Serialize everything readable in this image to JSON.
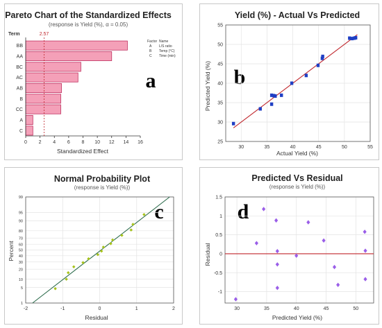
{
  "chart_data": [
    {
      "type": "bar",
      "title": "Pareto Chart of the Standardized Effects",
      "subtitle": "(response is Yield (%), α = 0.05)",
      "panel_letter": "a",
      "orientation": "horizontal",
      "ylabel": "Term",
      "xlabel": "Standardized Effect",
      "categories": [
        "BB",
        "AA",
        "BC",
        "AC",
        "AB",
        "B",
        "CC",
        "A",
        "C"
      ],
      "values": [
        14.2,
        12.0,
        7.7,
        7.3,
        5.0,
        4.9,
        4.9,
        1.0,
        1.0
      ],
      "xlim": [
        0,
        16
      ],
      "xticks": [
        0,
        2,
        4,
        6,
        8,
        10,
        12,
        14,
        16
      ],
      "reference_line": {
        "value": 2.57,
        "label": "2.57"
      },
      "bar_color": "#f4a0b8",
      "legend": {
        "headers": [
          "Factor",
          "Name"
        ],
        "rows": [
          [
            "A",
            "L/S ratio"
          ],
          [
            "B",
            "Temp (°C)"
          ],
          [
            "C",
            "Time (min)"
          ]
        ]
      }
    },
    {
      "type": "scatter",
      "title": "Yield (%) - Actual Vs Predicted",
      "panel_letter": "b",
      "xlabel": "Actual Yield (%)",
      "ylabel": "Predicted Yield (%)",
      "xlim": [
        27,
        55
      ],
      "ylim": [
        25,
        55
      ],
      "xticks": [
        30,
        35,
        40,
        45,
        50,
        55
      ],
      "yticks": [
        25,
        30,
        35,
        40,
        45,
        50,
        55
      ],
      "grid": true,
      "point_color": "#1f3fc4",
      "fit_line": {
        "from": [
          28.5,
          28.5
        ],
        "to": [
          52.5,
          52.5
        ],
        "color": "#c0262c"
      },
      "points": [
        {
          "x": 28.5,
          "y": 29.6
        },
        {
          "x": 33.7,
          "y": 33.4
        },
        {
          "x": 35.9,
          "y": 34.6
        },
        {
          "x": 35.9,
          "y": 36.9
        },
        {
          "x": 36.3,
          "y": 36.8
        },
        {
          "x": 36.6,
          "y": 36.7
        },
        {
          "x": 37.8,
          "y": 36.9
        },
        {
          "x": 39.8,
          "y": 40.0
        },
        {
          "x": 42.6,
          "y": 42.0
        },
        {
          "x": 44.9,
          "y": 44.6
        },
        {
          "x": 45.7,
          "y": 46.4
        },
        {
          "x": 45.8,
          "y": 46.9
        },
        {
          "x": 51.0,
          "y": 51.6
        },
        {
          "x": 51.5,
          "y": 51.5
        },
        {
          "x": 51.9,
          "y": 51.6
        },
        {
          "x": 52.2,
          "y": 51.7
        }
      ]
    },
    {
      "type": "scatter",
      "title": "Normal Probability Plot",
      "subtitle": "(response is Yield (%))",
      "panel_letter": "c",
      "xlabel": "Residual",
      "ylabel": "Percent",
      "xlim": [
        -2,
        2
      ],
      "xticks": [
        -2,
        -1,
        0,
        1,
        2
      ],
      "yscale": "probability",
      "ylim": [
        1,
        99
      ],
      "yticks": [
        1,
        5,
        10,
        20,
        30,
        40,
        50,
        60,
        70,
        80,
        90,
        95,
        99
      ],
      "grid": true,
      "point_color": "#a6c21a",
      "fit_line": {
        "color": "#2a6a4a"
      },
      "points": [
        {
          "x": -1.2,
          "y": 4.5
        },
        {
          "x": -0.9,
          "y": 10
        },
        {
          "x": -0.85,
          "y": 16
        },
        {
          "x": -0.7,
          "y": 23
        },
        {
          "x": -0.45,
          "y": 29
        },
        {
          "x": -0.3,
          "y": 35
        },
        {
          "x": -0.05,
          "y": 42
        },
        {
          "x": 0.05,
          "y": 48
        },
        {
          "x": 0.1,
          "y": 55
        },
        {
          "x": 0.3,
          "y": 61
        },
        {
          "x": 0.35,
          "y": 67
        },
        {
          "x": 0.6,
          "y": 74
        },
        {
          "x": 0.85,
          "y": 81
        },
        {
          "x": 0.9,
          "y": 87
        },
        {
          "x": 1.2,
          "y": 94
        }
      ]
    },
    {
      "type": "scatter",
      "title": "Predicted Vs Residual",
      "subtitle": "(response is Yield (%))",
      "panel_letter": "d",
      "xlabel": "Predicted Yield (%)",
      "ylabel": "Residual",
      "xlim": [
        28,
        53
      ],
      "ylim": [
        -1.3,
        1.5
      ],
      "xticks": [
        30,
        35,
        40,
        45,
        50
      ],
      "yticks": [
        -1.0,
        -0.5,
        0.0,
        0.5,
        1.0,
        1.5
      ],
      "grid": true,
      "point_color": "#9a5ee8",
      "reference_line": {
        "value": 0,
        "color": "#c0262c"
      },
      "points": [
        {
          "x": 29.8,
          "y": -1.2
        },
        {
          "x": 33.3,
          "y": 0.28
        },
        {
          "x": 34.5,
          "y": 1.18
        },
        {
          "x": 36.6,
          "y": 0.88
        },
        {
          "x": 36.8,
          "y": 0.07
        },
        {
          "x": 36.8,
          "y": -0.28
        },
        {
          "x": 36.8,
          "y": -0.9
        },
        {
          "x": 40.0,
          "y": -0.05
        },
        {
          "x": 42.0,
          "y": 0.83
        },
        {
          "x": 44.6,
          "y": 0.35
        },
        {
          "x": 46.4,
          "y": -0.35
        },
        {
          "x": 47.0,
          "y": -0.82
        },
        {
          "x": 51.5,
          "y": 0.58
        },
        {
          "x": 51.6,
          "y": 0.08
        },
        {
          "x": 51.6,
          "y": -0.67
        }
      ]
    }
  ]
}
